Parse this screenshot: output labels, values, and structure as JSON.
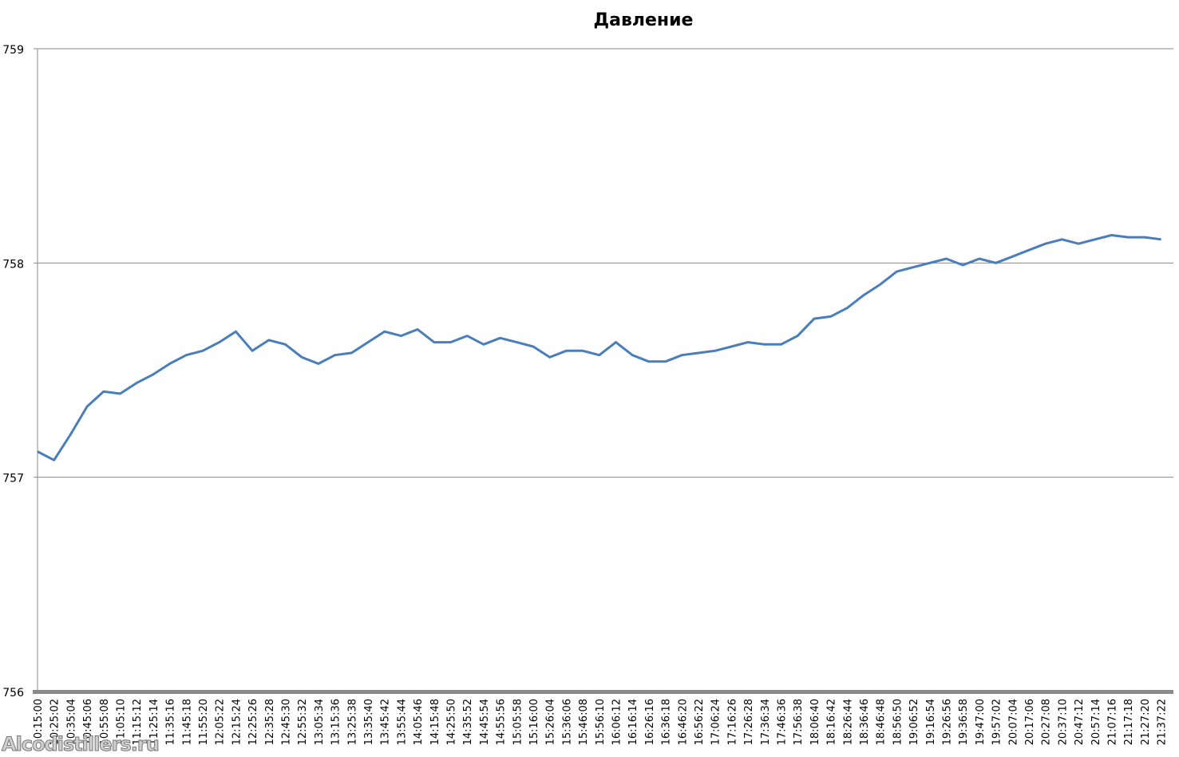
{
  "chart_data": {
    "type": "line",
    "title": "Давление",
    "xlabel": "",
    "ylabel": "",
    "ylim": [
      756,
      759
    ],
    "yticks": [
      "756",
      "757",
      "758",
      "759"
    ],
    "grid": "horizontal",
    "legend": "none",
    "line_color": "#4a7ebb",
    "categories": [
      "10:15:00",
      "10:25:02",
      "10:35:04",
      "10:45:06",
      "10:55:08",
      "11:05:10",
      "11:15:12",
      "11:25:14",
      "11:35:16",
      "11:45:18",
      "11:55:20",
      "12:05:22",
      "12:15:24",
      "12:25:26",
      "12:35:28",
      "12:45:30",
      "12:55:32",
      "13:05:34",
      "13:15:36",
      "13:25:38",
      "13:35:40",
      "13:45:42",
      "13:55:44",
      "14:05:46",
      "14:15:48",
      "14:25:50",
      "14:35:52",
      "14:45:54",
      "14:55:56",
      "15:05:58",
      "15:16:00",
      "15:26:04",
      "15:36:06",
      "15:46:08",
      "15:56:10",
      "16:06:12",
      "16:16:14",
      "16:26:16",
      "16:36:18",
      "16:46:20",
      "16:56:22",
      "17:06:24",
      "17:16:26",
      "17:26:28",
      "17:36:34",
      "17:46:36",
      "17:56:38",
      "18:06:40",
      "18:16:42",
      "18:26:44",
      "18:36:46",
      "18:46:48",
      "18:56:50",
      "19:06:52",
      "19:16:54",
      "19:26:56",
      "19:36:58",
      "19:47:00",
      "19:57:02",
      "20:07:04",
      "20:17:06",
      "20:27:08",
      "20:37:10",
      "20:47:12",
      "20:57:14",
      "21:07:16",
      "21:17:18",
      "21:27:20",
      "21:37:22"
    ],
    "values": [
      757.12,
      757.08,
      757.2,
      757.33,
      757.4,
      757.39,
      757.44,
      757.48,
      757.53,
      757.57,
      757.59,
      757.63,
      757.68,
      757.59,
      757.64,
      757.62,
      757.56,
      757.53,
      757.57,
      757.58,
      757.63,
      757.68,
      757.66,
      757.69,
      757.63,
      757.63,
      757.66,
      757.62,
      757.65,
      757.63,
      757.61,
      757.56,
      757.59,
      757.59,
      757.57,
      757.63,
      757.57,
      757.54,
      757.54,
      757.57,
      757.58,
      757.59,
      757.61,
      757.63,
      757.62,
      757.62,
      757.66,
      757.74,
      757.75,
      757.79,
      757.85,
      757.9,
      757.96,
      757.98,
      758.0,
      758.02,
      757.99,
      758.02,
      758.0,
      758.03,
      758.06,
      758.09,
      758.11,
      758.09,
      758.11,
      758.13,
      758.12,
      758.12,
      758.11
    ]
  },
  "watermark": "Alcodistillers.ru"
}
